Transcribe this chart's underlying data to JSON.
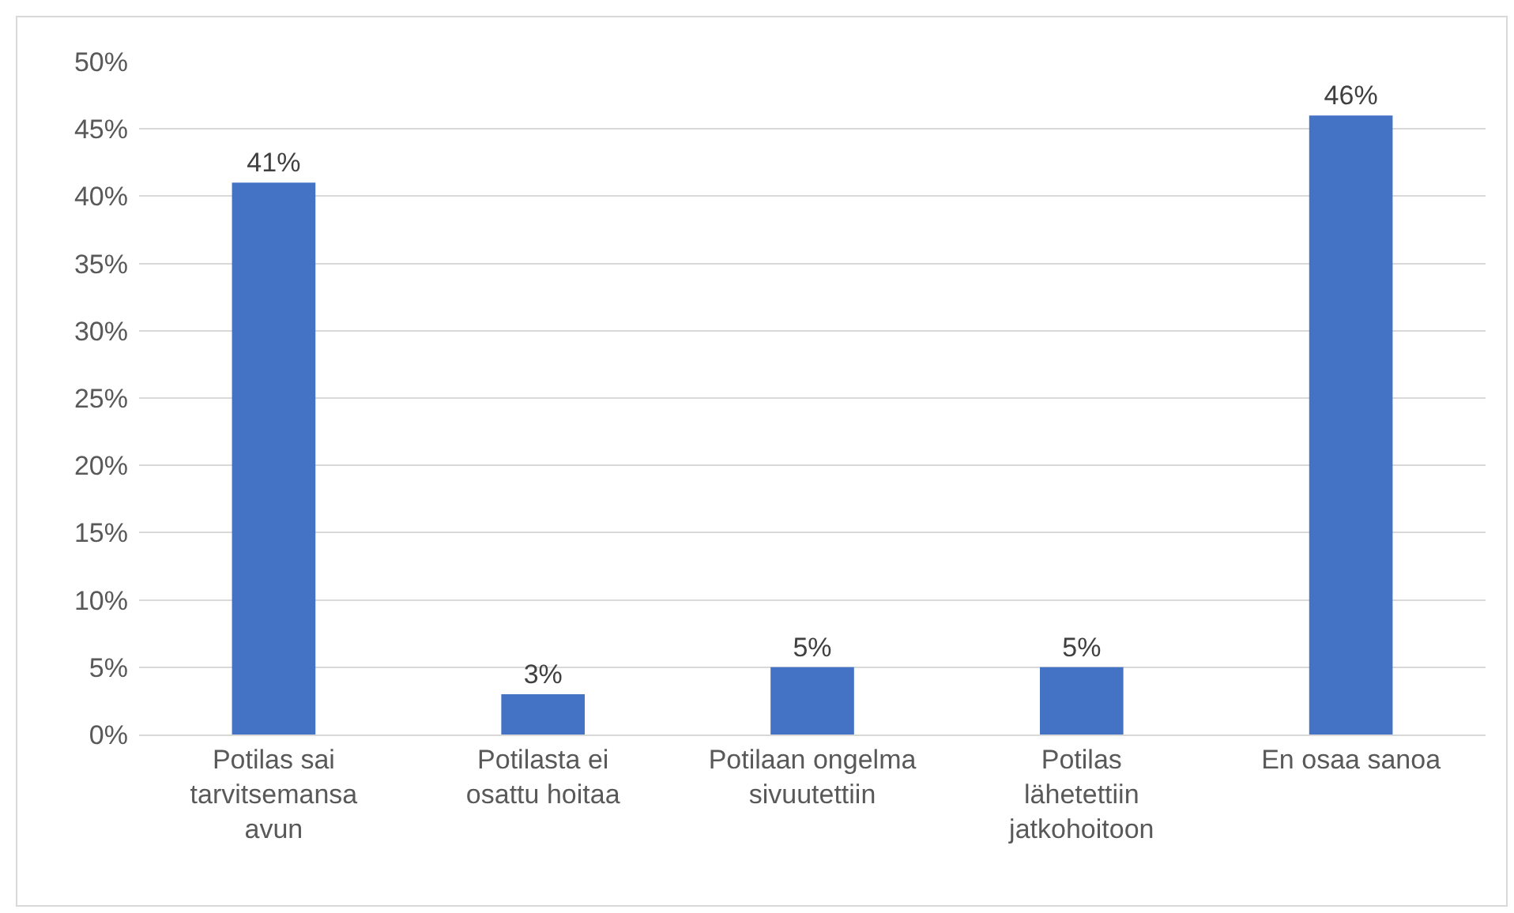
{
  "chart_data": {
    "type": "bar",
    "categories": [
      "Potilas sai tarvitsemansa avun",
      "Potilasta ei osattu hoitaa",
      "Potilaan ongelma sivuutettiin",
      "Potilas lähetettiin jatkohoitoon",
      "En osaa sanoa"
    ],
    "values": [
      41,
      3,
      5,
      5,
      46
    ],
    "value_labels": [
      "41%",
      "3%",
      "5%",
      "5%",
      "46%"
    ],
    "color": "#4472c4",
    "ylim": [
      0,
      50
    ],
    "yticks": [
      {
        "value": 0,
        "label": "0%"
      },
      {
        "value": 5,
        "label": "5%"
      },
      {
        "value": 10,
        "label": "10%"
      },
      {
        "value": 15,
        "label": "15%"
      },
      {
        "value": 20,
        "label": "20%"
      },
      {
        "value": 25,
        "label": "25%"
      },
      {
        "value": 30,
        "label": "30%"
      },
      {
        "value": 35,
        "label": "35%"
      },
      {
        "value": 40,
        "label": "40%"
      },
      {
        "value": 45,
        "label": "45%"
      },
      {
        "value": 50,
        "label": "50%"
      }
    ],
    "grid": "y"
  }
}
